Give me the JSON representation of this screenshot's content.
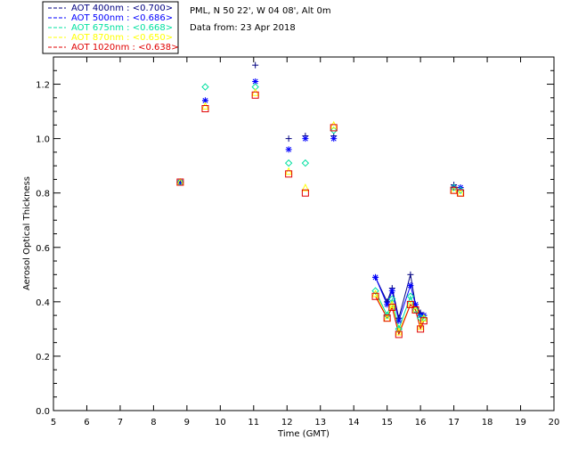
{
  "header": {
    "location": "PML, N 50 22', W 04 08', Alt 0m",
    "date": "Data from: 23 Apr 2018"
  },
  "legend": [
    {
      "text": "AOT  400nm : <0.700>",
      "color": "#000080"
    },
    {
      "text": "AOT  500nm : <0.686>",
      "color": "#0000ff"
    },
    {
      "text": "AOT  675nm : <0.668>",
      "color": "#00e0a0"
    },
    {
      "text": "AOT  870nm : <0.650>",
      "color": "#ffff00"
    },
    {
      "text": "AOT 1020nm : <0.638>",
      "color": "#e00000"
    }
  ],
  "chart_data": {
    "type": "scatter",
    "xlabel": "Time (GMT)",
    "ylabel": "Aerosol Optical Thickness",
    "xlim": [
      5,
      20
    ],
    "ylim": [
      0.0,
      1.3
    ],
    "xticks": [
      "5",
      "6",
      "7",
      "8",
      "9",
      "10",
      "11",
      "12",
      "13",
      "14",
      "15",
      "16",
      "17",
      "18",
      "19",
      "20"
    ],
    "yticks": [
      "0.0",
      "0.2",
      "0.4",
      "0.6",
      "0.8",
      "1.0",
      "1.2"
    ],
    "grid": false,
    "x": [
      8.8,
      9.55,
      11.05,
      12.05,
      12.55,
      13.4,
      14.65,
      15.0,
      15.15,
      15.35,
      15.7,
      15.85,
      16.0,
      16.1,
      17.0,
      17.2
    ],
    "series": [
      {
        "name": "AOT  400nm : <0.700>",
        "color": "#000080",
        "marker": "plus",
        "values": [
          0.84,
          1.14,
          1.27,
          1.0,
          1.01,
          1.01,
          0.49,
          0.4,
          0.45,
          0.34,
          0.5,
          0.39,
          0.36,
          0.35,
          0.83,
          0.82
        ]
      },
      {
        "name": "AOT  500nm : <0.686>",
        "color": "#0000ff",
        "marker": "asterisk",
        "values": [
          0.84,
          1.14,
          1.21,
          0.96,
          1.0,
          1.0,
          0.49,
          0.39,
          0.44,
          0.33,
          0.46,
          0.39,
          0.35,
          0.35,
          0.82,
          0.82
        ]
      },
      {
        "name": "AOT  675nm : <0.668>",
        "color": "#00e0a0",
        "marker": "diamond",
        "values": [
          0.84,
          1.19,
          1.19,
          0.91,
          0.91,
          1.03,
          0.44,
          0.35,
          0.41,
          0.3,
          0.42,
          0.37,
          0.34,
          0.34,
          0.82,
          0.81
        ]
      },
      {
        "name": "AOT  870nm : <0.650>",
        "color": "#ffff00",
        "marker": "triangle",
        "values": [
          0.84,
          1.12,
          1.17,
          0.88,
          0.82,
          1.05,
          0.43,
          0.34,
          0.39,
          0.29,
          0.39,
          0.37,
          0.31,
          0.34,
          0.81,
          0.8
        ]
      },
      {
        "name": "AOT 1020nm : <0.638>",
        "color": "#e00000",
        "marker": "square",
        "values": [
          0.84,
          1.11,
          1.16,
          0.87,
          0.8,
          1.04,
          0.42,
          0.34,
          0.38,
          0.28,
          0.39,
          0.37,
          0.3,
          0.33,
          0.81,
          0.8
        ]
      }
    ]
  }
}
